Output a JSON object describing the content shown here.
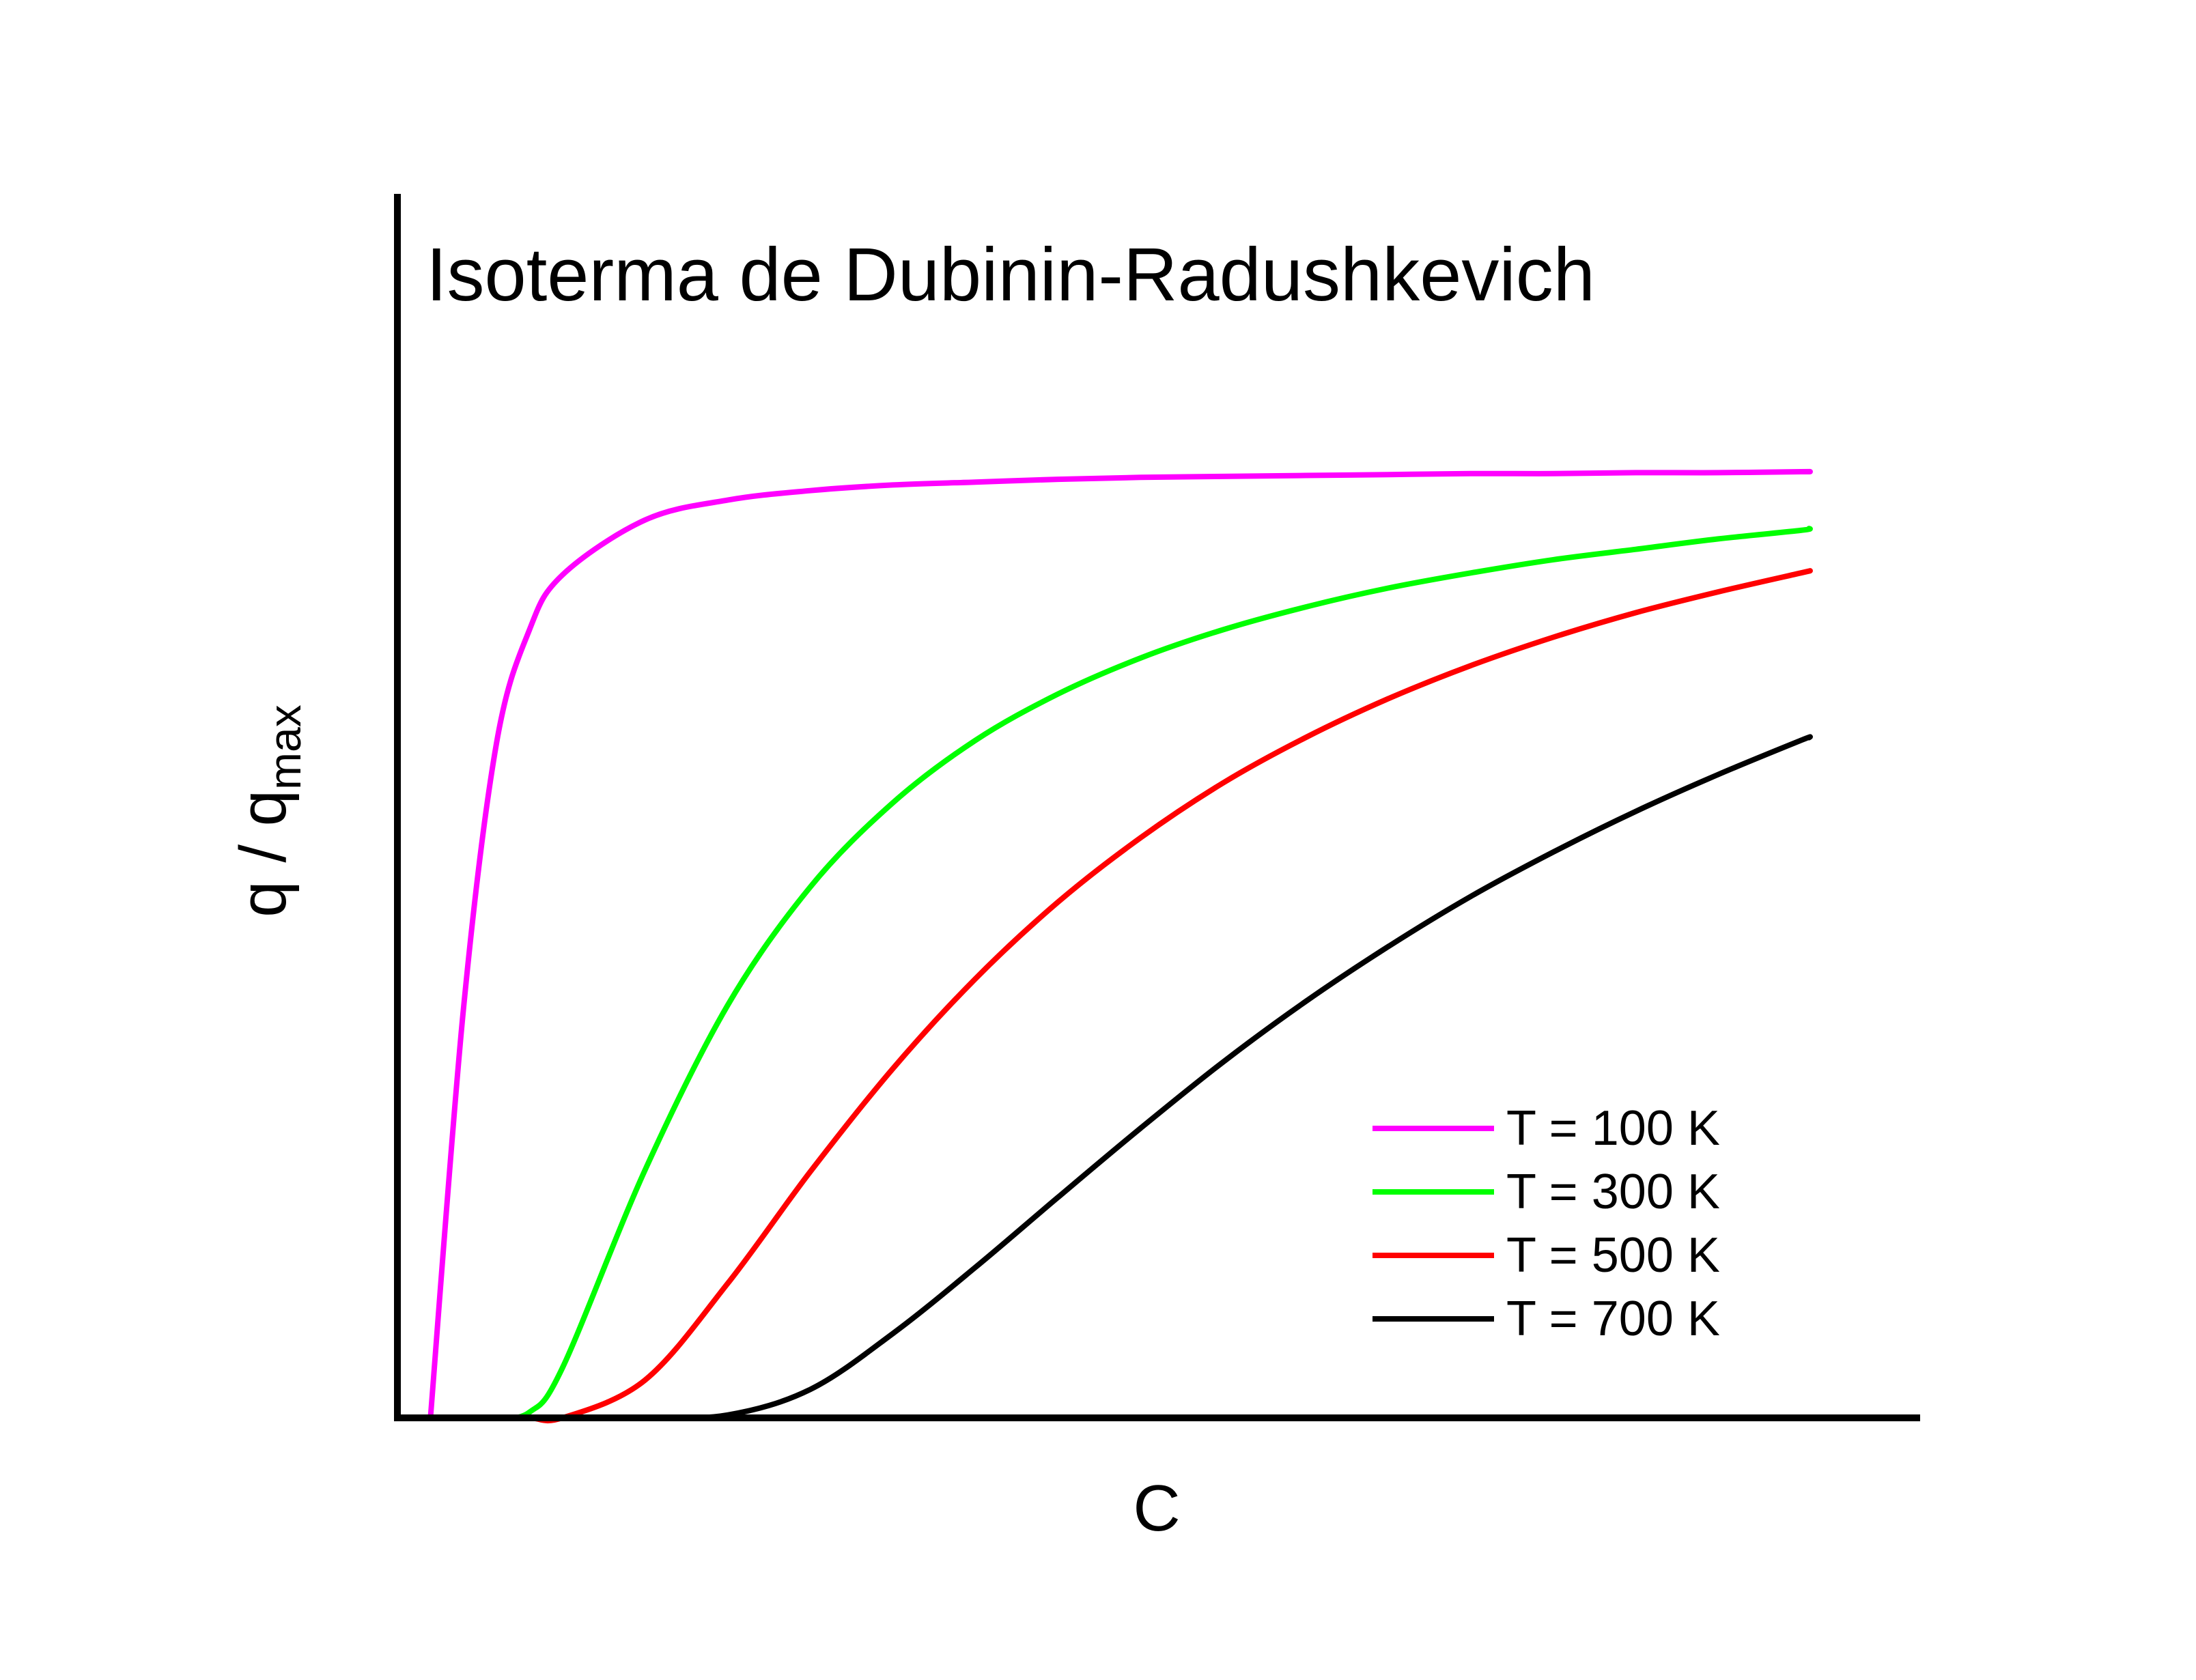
{
  "chart_data": {
    "type": "line",
    "title": "Isoterma de Dubinin-Radushkevich",
    "xlabel": "C",
    "ylabel": {
      "main": "q / q",
      "subscript": "max"
    },
    "xlim": [
      0,
      1
    ],
    "ylim": [
      0,
      1
    ],
    "grid": false,
    "legend_position": "bottom-right",
    "x": [
      0.02,
      0.04,
      0.06,
      0.08,
      0.1,
      0.15,
      0.2,
      0.25,
      0.3,
      0.35,
      0.4,
      0.45,
      0.5,
      0.55,
      0.6,
      0.65,
      0.7,
      0.75,
      0.8,
      0.85,
      0.855
    ],
    "series": [
      {
        "name": "T = 100 K",
        "color": "#ff00ff",
        "values": [
          0.0,
          0.432,
          0.713,
          0.833,
          0.891,
          0.949,
          0.97,
          0.98,
          0.986,
          0.989,
          0.992,
          0.994,
          0.995,
          0.996,
          0.997,
          0.998,
          0.998,
          0.999,
          0.999,
          1.0,
          1.0
        ]
      },
      {
        "name": "T = 300 K",
        "color": "#00ff00",
        "values": [
          0.0,
          0.0,
          0.0,
          0.006,
          0.053,
          0.262,
          0.436,
          0.561,
          0.65,
          0.716,
          0.765,
          0.803,
          0.833,
          0.857,
          0.877,
          0.893,
          0.907,
          0.918,
          0.929,
          0.938,
          0.94
        ]
      },
      {
        "name": "T = 500 K",
        "color": "#ff0000",
        "values": [
          0.0,
          0.0,
          0.0,
          0.0,
          0.0,
          0.04,
          0.142,
          0.26,
          0.369,
          0.464,
          0.545,
          0.613,
          0.671,
          0.719,
          0.76,
          0.795,
          0.825,
          0.851,
          0.873,
          0.893,
          0.895
        ]
      },
      {
        "name": "T = 700 K",
        "color": "#000000",
        "values": [
          0.0,
          0.0,
          0.0,
          0.0,
          0.0,
          0.0,
          0.003,
          0.03,
          0.089,
          0.159,
          0.233,
          0.306,
          0.376,
          0.44,
          0.498,
          0.551,
          0.598,
          0.641,
          0.68,
          0.716,
          0.719
        ]
      }
    ]
  }
}
